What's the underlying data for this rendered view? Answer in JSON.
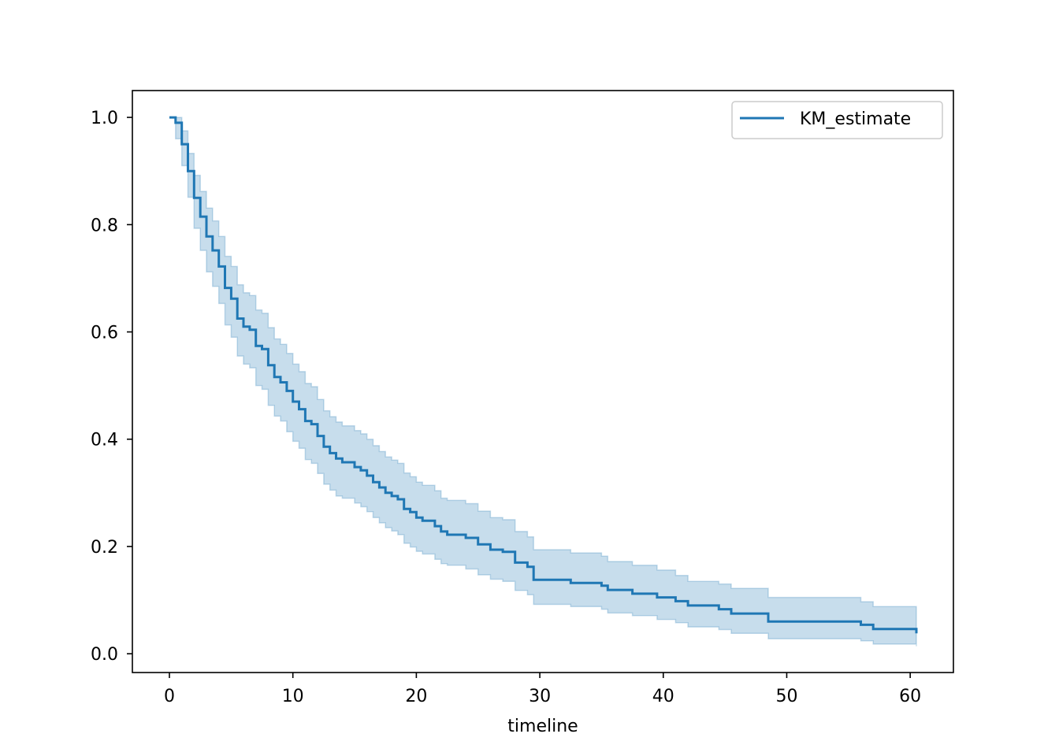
{
  "chart_data": {
    "type": "line",
    "title": "",
    "xlabel": "timeline",
    "ylabel": "",
    "xlim": [
      -3,
      63.5
    ],
    "ylim": [
      -0.035,
      1.05
    ],
    "xticks": [
      0,
      10,
      20,
      30,
      40,
      50,
      60
    ],
    "xtick_labels": [
      "0",
      "10",
      "20",
      "30",
      "40",
      "50",
      "60"
    ],
    "yticks": [
      0.0,
      0.2,
      0.4,
      0.6,
      0.8,
      1.0
    ],
    "ytick_labels": [
      "0.0",
      "0.2",
      "0.4",
      "0.6",
      "0.8",
      "1.0"
    ],
    "grid": false,
    "legend": {
      "position": "top-right",
      "entries": [
        "KM_estimate"
      ]
    },
    "colors": {
      "line": "#1f77b4",
      "band": "#1f77b4",
      "band_opacity": 0.25
    },
    "series": [
      {
        "name": "KM_estimate",
        "step": "post",
        "x": [
          0,
          0.5,
          1.0,
          1.5,
          2.0,
          2.5,
          3.0,
          3.5,
          4.0,
          4.5,
          5.0,
          5.5,
          6.0,
          6.5,
          7.0,
          7.5,
          8.0,
          8.5,
          9.0,
          9.5,
          10.0,
          10.5,
          11.0,
          11.5,
          12.0,
          12.5,
          13.0,
          13.5,
          14.0,
          15.0,
          15.5,
          16.0,
          16.5,
          17.0,
          17.5,
          18.0,
          18.5,
          19.0,
          19.5,
          20.0,
          20.5,
          21.5,
          22.0,
          22.5,
          24.0,
          25.0,
          26.0,
          27.0,
          28.0,
          29.0,
          29.5,
          32.5,
          35.0,
          35.5,
          37.5,
          39.5,
          41.0,
          42.0,
          44.5,
          45.5,
          48.5,
          56.0,
          57.0,
          60.5
        ],
        "y": [
          1.0,
          0.99,
          0.95,
          0.9,
          0.85,
          0.815,
          0.778,
          0.752,
          0.722,
          0.682,
          0.662,
          0.625,
          0.61,
          0.604,
          0.574,
          0.568,
          0.538,
          0.516,
          0.506,
          0.49,
          0.47,
          0.456,
          0.434,
          0.428,
          0.406,
          0.386,
          0.374,
          0.364,
          0.357,
          0.348,
          0.342,
          0.332,
          0.32,
          0.31,
          0.3,
          0.294,
          0.288,
          0.27,
          0.264,
          0.254,
          0.248,
          0.238,
          0.228,
          0.222,
          0.216,
          0.204,
          0.194,
          0.19,
          0.17,
          0.162,
          0.138,
          0.132,
          0.127,
          0.119,
          0.112,
          0.105,
          0.098,
          0.09,
          0.083,
          0.075,
          0.06,
          0.054,
          0.046,
          0.038
        ],
        "ci_upper": [
          1.0,
          1.0,
          0.975,
          0.933,
          0.892,
          0.862,
          0.831,
          0.807,
          0.778,
          0.741,
          0.722,
          0.688,
          0.673,
          0.668,
          0.641,
          0.635,
          0.608,
          0.587,
          0.577,
          0.56,
          0.54,
          0.526,
          0.504,
          0.498,
          0.474,
          0.453,
          0.442,
          0.432,
          0.425,
          0.416,
          0.41,
          0.4,
          0.388,
          0.377,
          0.367,
          0.361,
          0.355,
          0.337,
          0.33,
          0.32,
          0.314,
          0.304,
          0.29,
          0.286,
          0.28,
          0.266,
          0.254,
          0.25,
          0.228,
          0.218,
          0.194,
          0.188,
          0.182,
          0.172,
          0.165,
          0.156,
          0.146,
          0.135,
          0.13,
          0.122,
          0.105,
          0.097,
          0.088,
          0.078
        ],
        "ci_lower": [
          1.0,
          0.96,
          0.91,
          0.851,
          0.793,
          0.752,
          0.712,
          0.685,
          0.653,
          0.613,
          0.59,
          0.555,
          0.54,
          0.533,
          0.5,
          0.493,
          0.463,
          0.443,
          0.434,
          0.414,
          0.396,
          0.383,
          0.362,
          0.355,
          0.336,
          0.316,
          0.305,
          0.294,
          0.29,
          0.281,
          0.274,
          0.265,
          0.254,
          0.244,
          0.235,
          0.229,
          0.222,
          0.206,
          0.199,
          0.191,
          0.186,
          0.176,
          0.168,
          0.165,
          0.158,
          0.147,
          0.139,
          0.135,
          0.118,
          0.11,
          0.092,
          0.088,
          0.083,
          0.076,
          0.071,
          0.064,
          0.058,
          0.05,
          0.045,
          0.038,
          0.028,
          0.024,
          0.018,
          0.014
        ]
      }
    ]
  }
}
